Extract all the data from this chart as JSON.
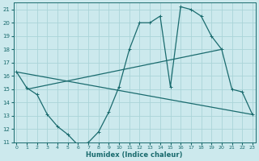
{
  "xlabel": "Humidex (Indice chaleur)",
  "bg_color": "#cce9ed",
  "grid_color": "#aad4d8",
  "line_color": "#1a6b6e",
  "x_values": [
    0,
    1,
    2,
    3,
    4,
    5,
    6,
    7,
    8,
    9,
    10,
    11,
    12,
    13,
    14,
    15,
    16,
    17,
    18,
    19,
    20,
    21,
    22,
    23
  ],
  "series1": [
    16.3,
    15.1,
    14.6,
    13.1,
    12.2,
    11.6,
    10.8,
    11.0,
    11.8,
    13.3,
    15.2,
    18.0,
    20.0,
    20.0,
    20.5,
    15.2,
    21.2,
    21.0,
    20.5,
    19.0,
    18.0,
    15.0,
    14.8,
    13.1
  ],
  "line1_x": [
    0,
    23
  ],
  "line1_y": [
    16.3,
    13.1
  ],
  "line2_x": [
    1,
    20
  ],
  "line2_y": [
    15.0,
    18.0
  ],
  "ylim": [
    11,
    21.5
  ],
  "xlim": [
    -0.3,
    23.3
  ],
  "yticks": [
    11,
    12,
    13,
    14,
    15,
    16,
    17,
    18,
    19,
    20,
    21
  ],
  "xticks": [
    0,
    1,
    2,
    3,
    4,
    5,
    6,
    7,
    8,
    9,
    10,
    11,
    12,
    13,
    14,
    15,
    16,
    17,
    18,
    19,
    20,
    21,
    22,
    23
  ]
}
